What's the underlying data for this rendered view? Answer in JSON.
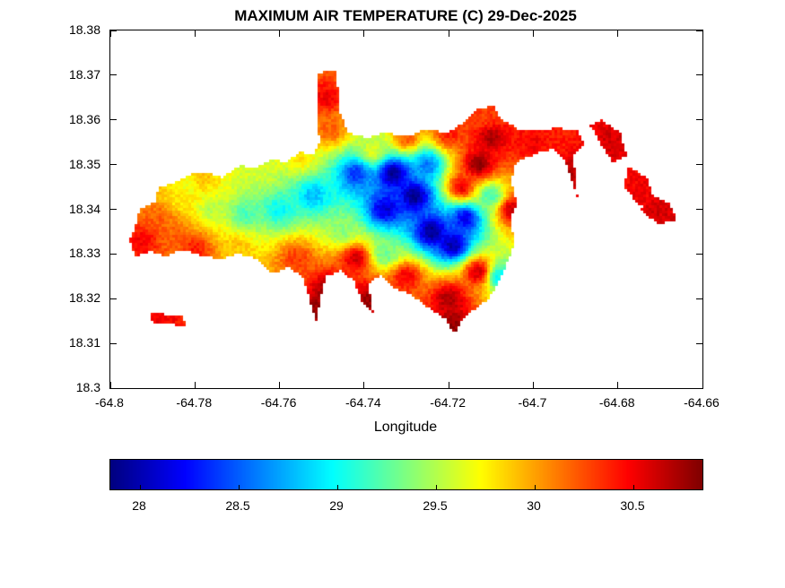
{
  "figure": {
    "title": "MAXIMUM AIR TEMPERATURE (C) 29-Dec-2025",
    "xlabel": "Longitude"
  },
  "colors": {
    "background": "#ffffff",
    "axis": "#000000"
  },
  "chart_data": {
    "type": "heatmap",
    "title": "MAXIMUM AIR TEMPERATURE (C) 29-Dec-2025",
    "xlabel": "Longitude",
    "ylabel": "",
    "grid": false,
    "colormap": "jet",
    "x_range": [
      -64.8,
      -64.66
    ],
    "y_range": [
      18.3,
      18.38
    ],
    "x_tick_values": [
      -64.8,
      -64.78,
      -64.76,
      -64.74,
      -64.72,
      -64.7,
      -64.68,
      -64.66
    ],
    "x_tick_labels": [
      "-64.8",
      "-64.78",
      "-64.76",
      "-64.74",
      "-64.72",
      "-64.7",
      "-64.68",
      "-64.66"
    ],
    "y_tick_values": [
      18.3,
      18.31,
      18.32,
      18.33,
      18.34,
      18.35,
      18.36,
      18.37,
      18.38
    ],
    "y_tick_labels": [
      "18.3",
      "18.31",
      "18.32",
      "18.33",
      "18.34",
      "18.35",
      "18.36",
      "18.37",
      "18.38"
    ],
    "color_domain": [
      27.85,
      30.85
    ],
    "colorbar_tick_values": [
      28,
      28.5,
      29,
      29.5,
      30,
      30.5
    ],
    "colorbar_tick_labels": [
      "28",
      "28.5",
      "29",
      "29.5",
      "30",
      "30.5"
    ],
    "region_polygons": [
      [
        [
          -64.7955,
          18.333
        ],
        [
          -64.794,
          18.3365
        ],
        [
          -64.793,
          18.34
        ],
        [
          -64.7895,
          18.3415
        ],
        [
          -64.7885,
          18.345
        ],
        [
          -64.7845,
          18.346
        ],
        [
          -64.781,
          18.3478
        ],
        [
          -64.7765,
          18.3482
        ],
        [
          -64.7735,
          18.347
        ],
        [
          -64.7695,
          18.3498
        ],
        [
          -64.7655,
          18.3492
        ],
        [
          -64.762,
          18.3512
        ],
        [
          -64.7585,
          18.3505
        ],
        [
          -64.755,
          18.3528
        ],
        [
          -64.7518,
          18.3522
        ],
        [
          -64.7505,
          18.355
        ],
        [
          -64.7512,
          18.362
        ],
        [
          -64.7508,
          18.3705
        ],
        [
          -64.7465,
          18.3712
        ],
        [
          -64.7458,
          18.362
        ],
        [
          -64.7438,
          18.3572
        ],
        [
          -64.7395,
          18.356
        ],
        [
          -64.7348,
          18.3572
        ],
        [
          -64.73,
          18.3562
        ],
        [
          -64.7255,
          18.3578
        ],
        [
          -64.7205,
          18.3572
        ],
        [
          -64.7165,
          18.3592
        ],
        [
          -64.713,
          18.3625
        ],
        [
          -64.7095,
          18.3632
        ],
        [
          -64.7072,
          18.3598
        ],
        [
          -64.7035,
          18.358
        ],
        [
          -64.699,
          18.3578
        ],
        [
          -64.694,
          18.3582
        ],
        [
          -64.6895,
          18.3575
        ],
        [
          -64.688,
          18.3545
        ],
        [
          -64.6905,
          18.352
        ],
        [
          -64.6895,
          18.3425
        ],
        [
          -64.6925,
          18.351
        ],
        [
          -64.6955,
          18.3535
        ],
        [
          -64.7,
          18.3522
        ],
        [
          -64.704,
          18.3505
        ],
        [
          -64.7052,
          18.346
        ],
        [
          -64.7038,
          18.3415
        ],
        [
          -64.7055,
          18.3372
        ],
        [
          -64.7042,
          18.333
        ],
        [
          -64.706,
          18.3285
        ],
        [
          -64.708,
          18.324
        ],
        [
          -64.7105,
          18.32
        ],
        [
          -64.7145,
          18.3172
        ],
        [
          -64.717,
          18.315
        ],
        [
          -64.7185,
          18.3118
        ],
        [
          -64.7205,
          18.3152
        ],
        [
          -64.724,
          18.3175
        ],
        [
          -64.729,
          18.3208
        ],
        [
          -64.733,
          18.3225
        ],
        [
          -64.736,
          18.3255
        ],
        [
          -64.739,
          18.323
        ],
        [
          -64.7378,
          18.3165
        ],
        [
          -64.7405,
          18.3195
        ],
        [
          -64.7425,
          18.324
        ],
        [
          -64.7455,
          18.3262
        ],
        [
          -64.749,
          18.325
        ],
        [
          -64.7505,
          18.319
        ],
        [
          -64.7512,
          18.3148
        ],
        [
          -64.7528,
          18.3195
        ],
        [
          -64.7545,
          18.3248
        ],
        [
          -64.758,
          18.327
        ],
        [
          -64.762,
          18.3255
        ],
        [
          -64.765,
          18.3288
        ],
        [
          -64.77,
          18.33
        ],
        [
          -64.774,
          18.3288
        ],
        [
          -64.779,
          18.3298
        ],
        [
          -64.783,
          18.331
        ],
        [
          -64.787,
          18.3295
        ],
        [
          -64.7905,
          18.3305
        ],
        [
          -64.794,
          18.3295
        ]
      ],
      [
        [
          -64.684,
          18.36
        ],
        [
          -64.6795,
          18.3572
        ],
        [
          -64.6778,
          18.352
        ],
        [
          -64.6812,
          18.3505
        ],
        [
          -64.6848,
          18.3558
        ],
        [
          -64.6865,
          18.3588
        ]
      ],
      [
        [
          -64.6775,
          18.3495
        ],
        [
          -64.673,
          18.347
        ],
        [
          -64.6712,
          18.342
        ],
        [
          -64.6748,
          18.3405
        ],
        [
          -64.6785,
          18.3452
        ]
      ],
      [
        [
          -64.673,
          18.3435
        ],
        [
          -64.668,
          18.3415
        ],
        [
          -64.666,
          18.3378
        ],
        [
          -64.6702,
          18.3365
        ],
        [
          -64.6745,
          18.3398
        ]
      ],
      [
        [
          -64.7905,
          18.3168
        ],
        [
          -64.7828,
          18.3162
        ],
        [
          -64.7822,
          18.314
        ],
        [
          -64.79,
          18.3144
        ]
      ]
    ],
    "temperature_points": [
      [
        -64.733,
        18.348,
        27.9
      ],
      [
        -64.728,
        18.343,
        27.9
      ],
      [
        -64.724,
        18.335,
        27.9
      ],
      [
        -64.719,
        18.332,
        28.0
      ],
      [
        -64.735,
        18.34,
        28.1
      ],
      [
        -64.742,
        18.348,
        28.4
      ],
      [
        -64.716,
        18.338,
        28.2
      ],
      [
        -64.725,
        18.35,
        28.6
      ],
      [
        -64.752,
        18.343,
        28.8
      ],
      [
        -64.76,
        18.34,
        29.0
      ],
      [
        -64.768,
        18.339,
        29.2
      ],
      [
        -64.776,
        18.34,
        29.5
      ],
      [
        -64.77,
        18.331,
        29.9
      ],
      [
        -64.788,
        18.338,
        30.2
      ],
      [
        -64.792,
        18.333,
        30.5
      ],
      [
        -64.784,
        18.342,
        29.8
      ],
      [
        -64.782,
        18.3455,
        29.7
      ],
      [
        -64.778,
        18.347,
        29.9
      ],
      [
        -64.765,
        18.349,
        29.6
      ],
      [
        -64.755,
        18.352,
        29.8
      ],
      [
        -64.738,
        18.353,
        29.6
      ],
      [
        -64.73,
        18.356,
        30.2
      ],
      [
        -64.72,
        18.357,
        30.4
      ],
      [
        -64.749,
        18.365,
        30.5
      ],
      [
        -64.748,
        18.358,
        30.2
      ],
      [
        -64.713,
        18.35,
        30.8
      ],
      [
        -64.71,
        18.356,
        30.7
      ],
      [
        -64.717,
        18.345,
        30.5
      ],
      [
        -64.711,
        18.361,
        30.3
      ],
      [
        -64.705,
        18.34,
        30.6
      ],
      [
        -64.7,
        18.355,
        30.5
      ],
      [
        -64.692,
        18.348,
        30.7
      ],
      [
        -64.69,
        18.344,
        30.6
      ],
      [
        -64.708,
        18.325,
        29.0
      ],
      [
        -64.713,
        18.326,
        30.6
      ],
      [
        -64.72,
        18.32,
        30.7
      ],
      [
        -64.742,
        18.329,
        30.6
      ],
      [
        -64.748,
        18.322,
        30.8
      ],
      [
        -64.738,
        18.32,
        30.8
      ],
      [
        -64.756,
        18.329,
        30.3
      ],
      [
        -64.73,
        18.325,
        30.5
      ],
      [
        -64.745,
        18.335,
        29.4
      ],
      [
        -64.735,
        18.33,
        29.3
      ],
      [
        -64.71,
        18.343,
        29.2
      ],
      [
        -64.78,
        18.331,
        30.4
      ],
      [
        -64.786,
        18.333,
        30.2
      ],
      [
        -64.751,
        18.317,
        30.8
      ],
      [
        -64.719,
        18.314,
        30.8
      ],
      [
        -64.695,
        18.356,
        30.4
      ],
      [
        -64.682,
        18.355,
        30.6
      ],
      [
        -64.6745,
        18.345,
        30.5
      ],
      [
        -64.67,
        18.3395,
        30.6
      ],
      [
        -64.788,
        18.3155,
        30.5
      ]
    ]
  }
}
